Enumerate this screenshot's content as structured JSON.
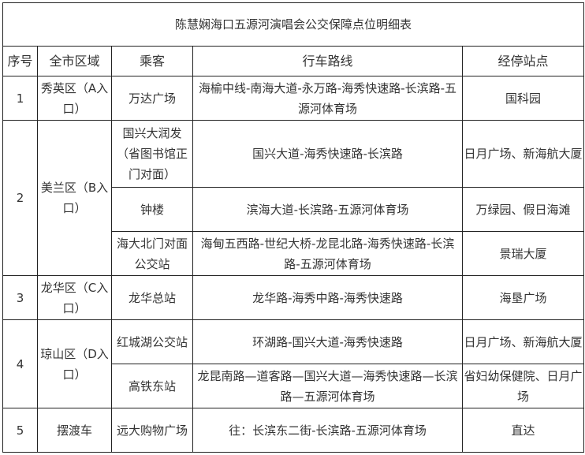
{
  "title": "陈慧娴海口五源河演唱会公交保障点位明细表",
  "headers": [
    "序号",
    "全市区域",
    "乘客",
    "行车路线",
    "经停站点"
  ],
  "groups": [
    {
      "no": "1",
      "area": "秀英区（A入口）",
      "rows": [
        {
          "passenger": "万达广场",
          "route": "海榆中线-南海大道-永万路-海秀快速路-长滨路-五源河体育场",
          "stops": "国科园"
        }
      ]
    },
    {
      "no": "2",
      "area": "美兰区（B入口）",
      "rows": [
        {
          "passenger": "国兴大润发　　（省图书馆正门对面）",
          "route": "国兴大道-海秀快速路-长滨路",
          "stops": "日月广场、新海航大厦"
        },
        {
          "passenger": "钟楼",
          "route": "滨海大道-长滨路-五源河体育场",
          "stops": "万绿园、假日海滩"
        },
        {
          "passenger": "海大北门对面公交站",
          "route": "海甸五西路-世纪大桥-龙昆北路-海秀快速路-长滨路-五源河体育场",
          "stops": "景瑞大厦"
        }
      ]
    },
    {
      "no": "3",
      "area": "龙华区（C入口）",
      "rows": [
        {
          "passenger": "龙华总站",
          "route": "龙华路-海秀中路-海秀快速路",
          "stops": "海垦广场"
        }
      ]
    },
    {
      "no": "4",
      "area": "琼山区（D入口）",
      "rows": [
        {
          "passenger": "红城湖公交站",
          "route": "环湖路-国兴大道-海秀快速路",
          "stops": "日月广场、新海航大厦"
        },
        {
          "passenger": "高铁东站",
          "route": "龙昆南路—道客路—国兴大道—海秀快速路—长滨路—五源河体育场",
          "stops": "省妇幼保健院、日月广场"
        }
      ]
    },
    {
      "no": "5",
      "area": "摆渡车",
      "rows": [
        {
          "passenger": "远大购物广场",
          "route": "往：长滨东二街-长滨路-五源河体育场",
          "stops": "直达"
        }
      ]
    }
  ]
}
